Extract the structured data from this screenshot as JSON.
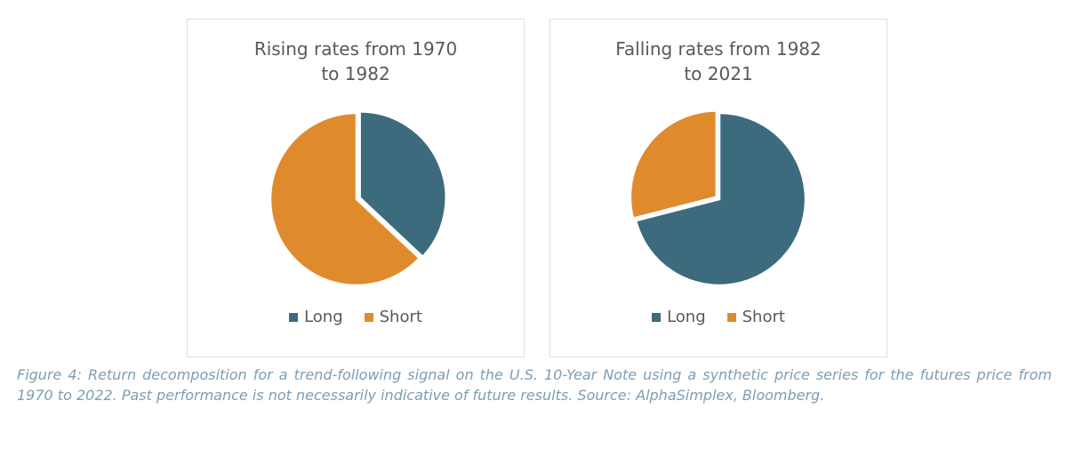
{
  "colors": {
    "long": "#3C6B7D",
    "short": "#E08A2E",
    "title_text": "#595959",
    "legend_text": "#595959",
    "caption_text": "#7E9DB2",
    "panel_border": "#DEDEDE",
    "slice_separator": "#FFFFFF"
  },
  "chart_data": [
    {
      "type": "pie",
      "title": "Rising rates from 1970 to 1982",
      "title_lines": [
        "Rising rates from 1970",
        "to 1982"
      ],
      "labels": [
        "Long",
        "Short"
      ],
      "values": [
        37,
        63
      ],
      "colors": [
        "#3C6B7D",
        "#E08A2E"
      ],
      "start_angle_deg": 0,
      "direction": "clockwise",
      "legend_position": "bottom",
      "exploded_slice": "Long"
    },
    {
      "type": "pie",
      "title": "Falling rates from 1982 to 2021",
      "title_lines": [
        "Falling rates from 1982",
        "to 2021"
      ],
      "labels": [
        "Long",
        "Short"
      ],
      "values": [
        71,
        29
      ],
      "colors": [
        "#3C6B7D",
        "#E08A2E"
      ],
      "start_angle_deg": 0,
      "direction": "clockwise",
      "legend_position": "bottom",
      "exploded_slice": "Short"
    }
  ],
  "figure": {
    "caption": "Figure 4: Return decomposition for a trend-following signal on the U.S. 10-Year Note using a synthetic price series for the futures price from 1970 to 2022. Past performance is not necessarily indicative of future results. Source: AlphaSimplex, Bloomberg."
  }
}
